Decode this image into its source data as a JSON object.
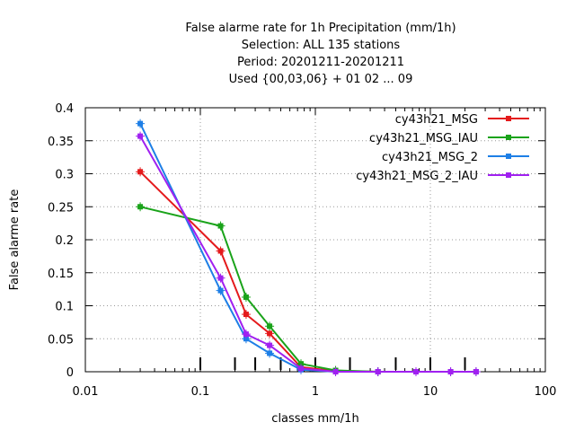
{
  "chart_data": {
    "type": "line",
    "title_lines": [
      "False alarme rate  for 1h Precipitation (mm/1h)",
      "Selection: ALL    135 stations",
      "Period: 20201211-20201211",
      "Used {00,03,06} + 01 02 ... 09"
    ],
    "xlabel": "classes mm/1h",
    "ylabel": "False alarme rate",
    "xscale": "log",
    "xlim": [
      0.01,
      100
    ],
    "ylim": [
      0,
      0.4
    ],
    "x_ticks": [
      0.01,
      0.1,
      1,
      10,
      100
    ],
    "x_tick_labels": [
      "0.01",
      "0.1",
      "1",
      "10",
      "100"
    ],
    "y_ticks": [
      0,
      0.05,
      0.1,
      0.15,
      0.2,
      0.25,
      0.3,
      0.35,
      0.4
    ],
    "y_tick_labels": [
      "0",
      "0.05",
      "0.1",
      "0.15",
      "0.2",
      "0.25",
      "0.3",
      "0.35",
      "0.4"
    ],
    "grid": true,
    "legend_position": "top-right",
    "class_markers": [
      0.1,
      0.2,
      0.3,
      0.5,
      1,
      2,
      5,
      10,
      20
    ],
    "x": [
      0.03,
      0.15,
      0.25,
      0.4,
      0.75,
      1.5,
      3.5,
      7.5,
      15,
      25
    ],
    "series": [
      {
        "name": "cy43h21_MSG",
        "color": "#e41a1c",
        "values": [
          0.303,
          0.183,
          0.087,
          0.058,
          0.007,
          0.001,
          0.0,
          0.0,
          0.0,
          0.0
        ]
      },
      {
        "name": "cy43h21_MSG_IAU",
        "color": "#1aa31a",
        "values": [
          0.25,
          0.221,
          0.113,
          0.069,
          0.012,
          0.002,
          0.0,
          0.0,
          0.0,
          0.0
        ]
      },
      {
        "name": "cy43h21_MSG_2",
        "color": "#1e7fe6",
        "values": [
          0.376,
          0.123,
          0.05,
          0.028,
          0.003,
          0.0,
          0.0,
          0.0,
          0.0,
          0.0
        ]
      },
      {
        "name": "cy43h21_MSG_2_IAU",
        "color": "#a020f0",
        "values": [
          0.357,
          0.142,
          0.057,
          0.04,
          0.005,
          0.0,
          0.0,
          0.0,
          0.0,
          0.0
        ]
      }
    ]
  }
}
